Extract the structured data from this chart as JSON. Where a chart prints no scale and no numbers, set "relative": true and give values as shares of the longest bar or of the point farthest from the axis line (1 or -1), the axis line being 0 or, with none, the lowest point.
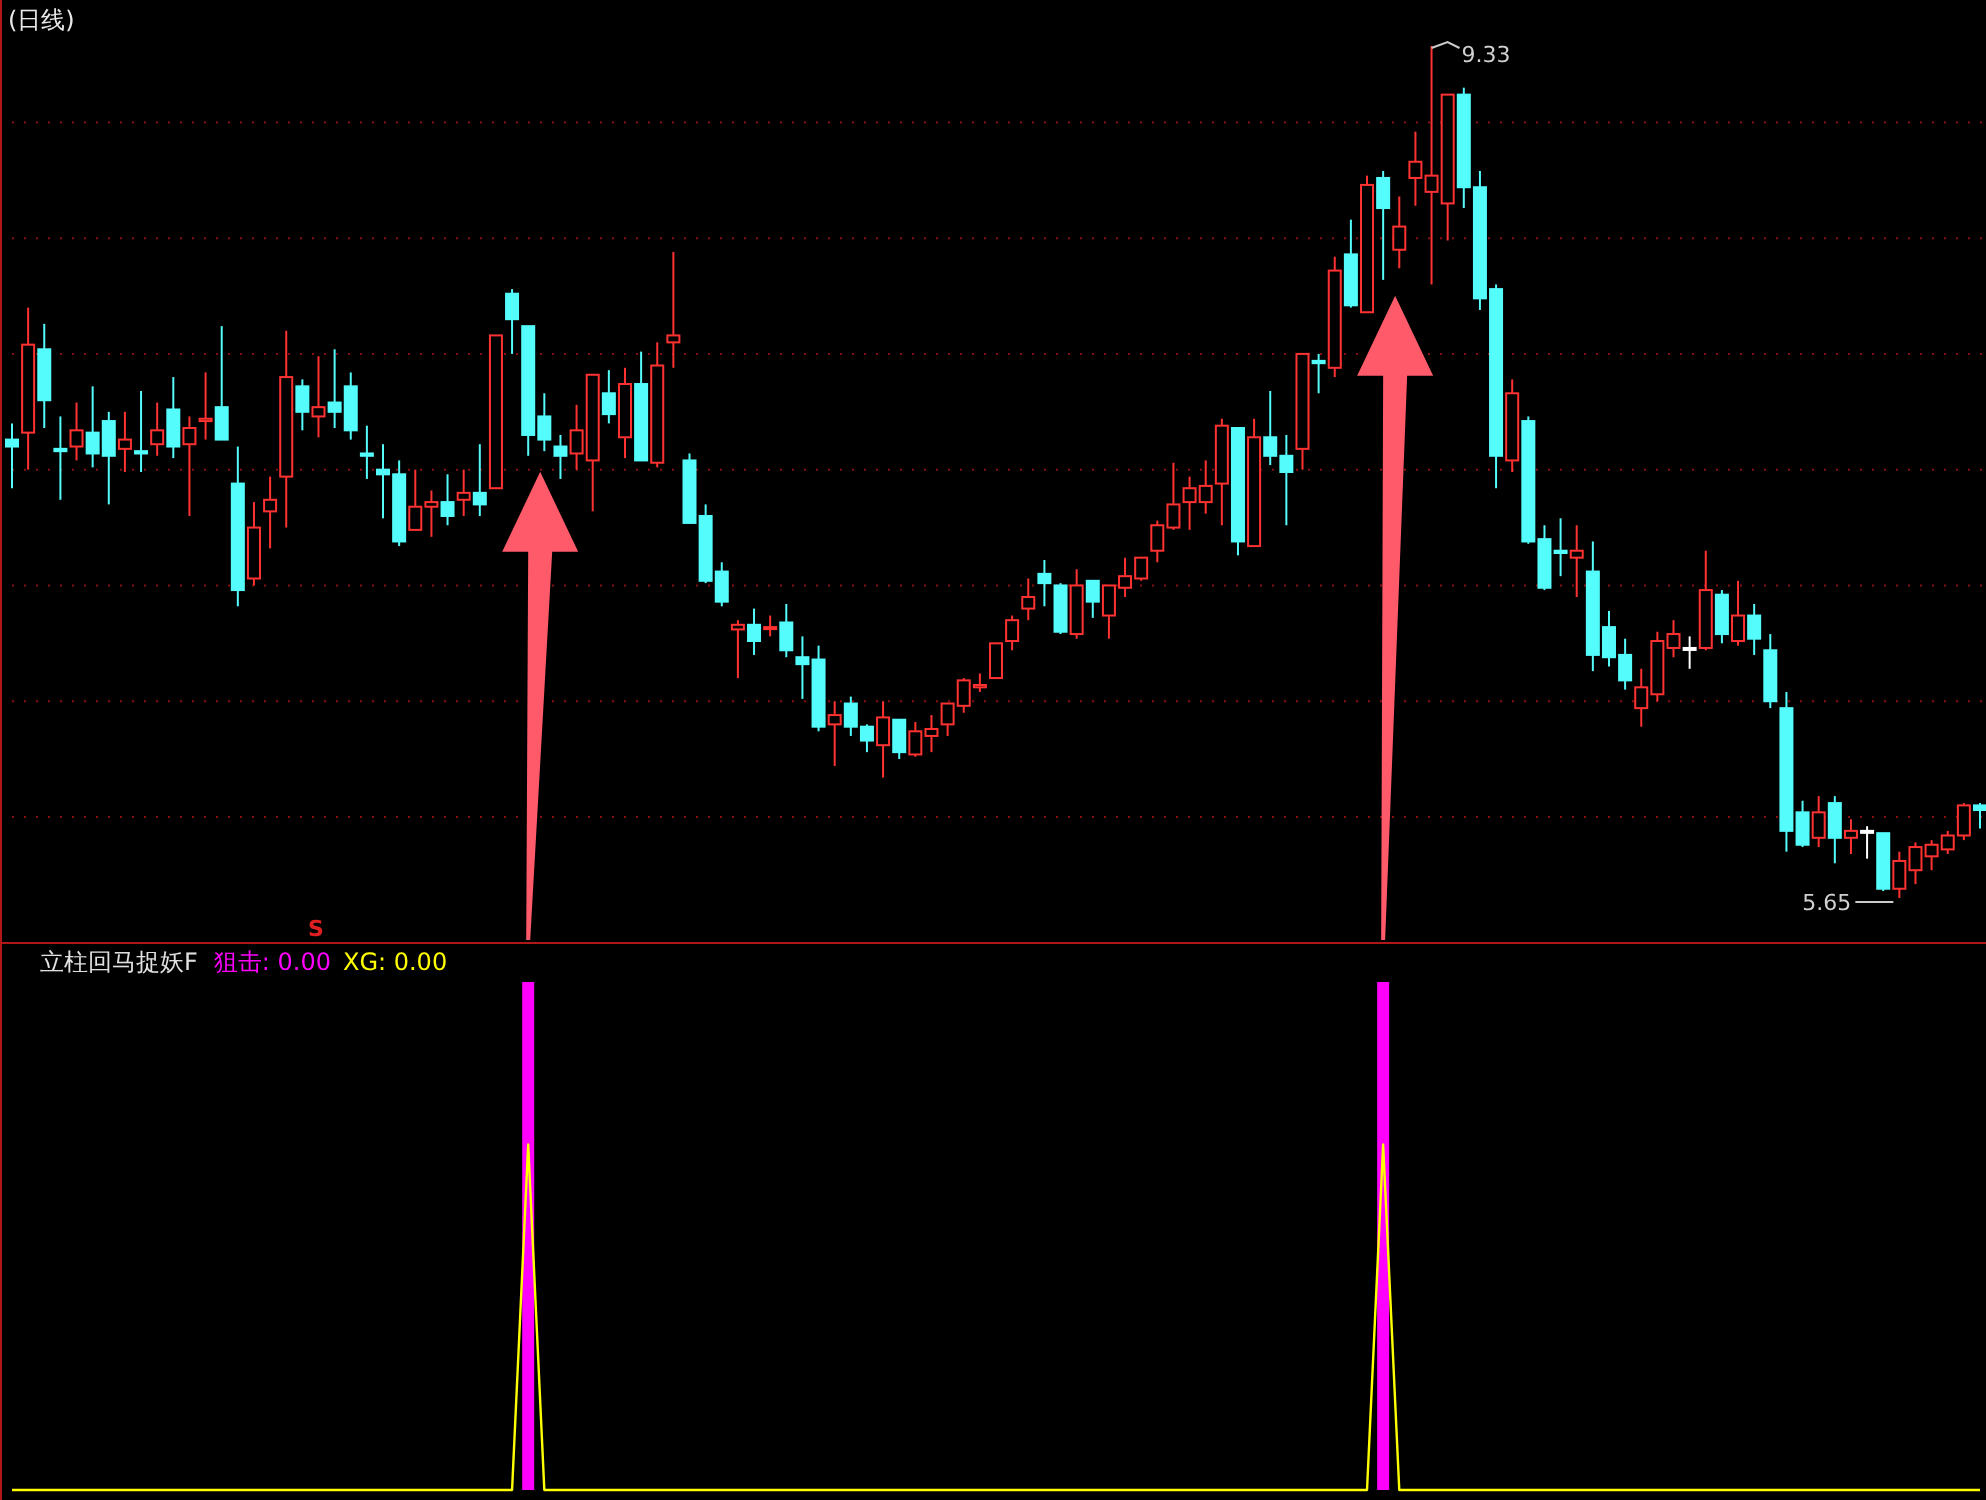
{
  "chart_data": [
    {
      "type": "candlestick",
      "title": "(日线)",
      "grid": "y",
      "yticks": [
        {
          "value": 6,
          "label": null
        },
        {
          "value": 6.5,
          "label": null
        },
        {
          "value": 7,
          "label": null
        },
        {
          "value": 7.5,
          "label": null
        },
        {
          "value": 8,
          "label": null
        },
        {
          "value": 8.5,
          "label": null
        },
        {
          "value": 9,
          "label": null
        }
      ],
      "annotations": [
        "9.33",
        "5.65",
        "S"
      ],
      "categories": [
        null,
        null,
        null,
        null,
        null,
        null,
        null,
        null,
        null,
        null,
        null,
        null,
        null,
        null,
        null,
        null,
        null,
        null,
        null,
        null,
        null,
        null,
        null,
        null,
        null,
        null,
        null,
        null,
        null,
        null,
        null,
        null,
        null,
        null,
        null,
        null,
        null,
        null,
        null,
        null,
        null,
        null,
        null,
        null,
        null,
        null,
        null,
        null,
        null,
        null,
        null,
        null,
        null,
        null,
        null,
        null,
        null,
        null,
        null,
        null,
        null,
        null,
        null,
        null,
        null,
        null,
        null,
        null,
        null,
        null,
        null,
        null,
        null,
        null,
        null,
        null,
        null,
        null,
        null,
        null,
        null,
        null,
        null,
        null,
        null,
        null,
        null,
        null,
        null,
        null,
        null,
        null,
        null,
        null,
        null,
        null,
        null,
        null,
        null,
        null,
        null,
        null,
        null,
        null,
        null,
        null,
        null,
        null,
        null,
        null,
        null,
        null,
        null,
        null,
        null,
        null,
        null,
        null,
        null,
        null,
        null,
        null,
        null
      ],
      "ohlc": [
        [
          7.63,
          7.7,
          7.42,
          7.6
        ],
        [
          7.66,
          8.2,
          7.5,
          8.04
        ],
        [
          8.02,
          8.13,
          7.68,
          7.8
        ],
        [
          7.59,
          7.73,
          7.37,
          7.58
        ],
        [
          7.6,
          7.79,
          7.54,
          7.67
        ],
        [
          7.66,
          7.86,
          7.51,
          7.57
        ],
        [
          7.71,
          7.75,
          7.35,
          7.56
        ],
        [
          7.59,
          7.75,
          7.49,
          7.63
        ],
        [
          7.58,
          7.84,
          7.49,
          7.57
        ],
        [
          7.61,
          7.79,
          7.56,
          7.67
        ],
        [
          7.76,
          7.9,
          7.55,
          7.6
        ],
        [
          7.61,
          7.73,
          7.3,
          7.68
        ],
        [
          7.71,
          7.92,
          7.63,
          7.72
        ],
        [
          7.77,
          8.12,
          7.63,
          7.63
        ],
        [
          7.44,
          7.6,
          6.91,
          6.98
        ],
        [
          7.03,
          7.36,
          7.0,
          7.25
        ],
        [
          7.32,
          7.47,
          7.16,
          7.37
        ],
        [
          7.47,
          8.1,
          7.25,
          7.9
        ],
        [
          7.86,
          7.89,
          7.67,
          7.75
        ],
        [
          7.73,
          7.99,
          7.64,
          7.77
        ],
        [
          7.79,
          8.02,
          7.68,
          7.75
        ],
        [
          7.86,
          7.92,
          7.63,
          7.67
        ],
        [
          7.57,
          7.69,
          7.46,
          7.56
        ],
        [
          7.5,
          7.61,
          7.29,
          7.48
        ],
        [
          7.48,
          7.54,
          7.17,
          7.19
        ],
        [
          7.24,
          7.5,
          7.24,
          7.34
        ],
        [
          7.34,
          7.41,
          7.21,
          7.36
        ],
        [
          7.36,
          7.48,
          7.26,
          7.3
        ],
        [
          7.37,
          7.5,
          7.3,
          7.4
        ],
        [
          7.4,
          7.61,
          7.3,
          7.35
        ],
        [
          7.42,
          8.08,
          7.42,
          8.08
        ],
        [
          8.26,
          8.28,
          8.0,
          8.15
        ],
        [
          8.12,
          8.12,
          7.56,
          7.65
        ],
        [
          7.73,
          7.83,
          7.58,
          7.63
        ],
        [
          7.6,
          7.65,
          7.46,
          7.56
        ],
        [
          7.57,
          7.78,
          7.5,
          7.67
        ],
        [
          7.54,
          7.91,
          7.32,
          7.91
        ],
        [
          7.83,
          7.93,
          7.7,
          7.74
        ],
        [
          7.64,
          7.94,
          7.55,
          7.87
        ],
        [
          7.87,
          8.01,
          7.54,
          7.54
        ],
        [
          7.53,
          8.05,
          7.51,
          7.95
        ],
        [
          8.05,
          8.44,
          7.94,
          8.08
        ],
        [
          7.54,
          7.57,
          7.27,
          7.27
        ],
        [
          7.3,
          7.35,
          7.01,
          7.02
        ],
        [
          7.06,
          7.1,
          6.91,
          6.93
        ],
        [
          6.81,
          6.85,
          6.6,
          6.83
        ],
        [
          6.83,
          6.9,
          6.7,
          6.76
        ],
        [
          6.82,
          6.87,
          6.78,
          6.82
        ],
        [
          6.84,
          6.92,
          6.69,
          6.72
        ],
        [
          6.69,
          6.78,
          6.51,
          6.66
        ],
        [
          6.68,
          6.74,
          6.37,
          6.39
        ],
        [
          6.4,
          6.5,
          6.22,
          6.44
        ],
        [
          6.49,
          6.52,
          6.35,
          6.39
        ],
        [
          6.39,
          6.4,
          6.28,
          6.33
        ],
        [
          6.31,
          6.5,
          6.17,
          6.43
        ],
        [
          6.42,
          6.42,
          6.25,
          6.28
        ],
        [
          6.27,
          6.41,
          6.26,
          6.37
        ],
        [
          6.35,
          6.44,
          6.28,
          6.38
        ],
        [
          6.4,
          6.49,
          6.35,
          6.49
        ],
        [
          6.48,
          6.6,
          6.45,
          6.59
        ],
        [
          6.56,
          6.62,
          6.54,
          6.57
        ],
        [
          6.6,
          6.75,
          6.6,
          6.75
        ],
        [
          6.76,
          6.87,
          6.72,
          6.85
        ],
        [
          6.9,
          7.03,
          6.85,
          6.95
        ],
        [
          7.05,
          7.11,
          6.91,
          7.01
        ],
        [
          7.0,
          7.01,
          6.79,
          6.8
        ],
        [
          6.79,
          7.07,
          6.77,
          7.0
        ],
        [
          7.02,
          7.02,
          6.86,
          6.93
        ],
        [
          6.87,
          7.0,
          6.77,
          7.0
        ],
        [
          6.99,
          7.12,
          6.95,
          7.04
        ],
        [
          7.03,
          7.12,
          7.02,
          7.12
        ],
        [
          7.15,
          7.28,
          7.1,
          7.26
        ],
        [
          7.25,
          7.53,
          7.24,
          7.35
        ],
        [
          7.36,
          7.47,
          7.24,
          7.42
        ],
        [
          7.36,
          7.54,
          7.31,
          7.43
        ],
        [
          7.44,
          7.72,
          7.26,
          7.69
        ],
        [
          7.68,
          7.68,
          7.13,
          7.19
        ],
        [
          7.17,
          7.72,
          7.17,
          7.64
        ],
        [
          7.64,
          7.84,
          7.52,
          7.56
        ],
        [
          7.56,
          7.65,
          7.26,
          7.49
        ],
        [
          7.59,
          8.0,
          7.5,
          8.0
        ],
        [
          7.97,
          8.0,
          7.83,
          7.96
        ],
        [
          7.94,
          8.42,
          7.9,
          8.36
        ],
        [
          8.43,
          8.58,
          8.2,
          8.21
        ],
        [
          8.18,
          8.77,
          8.18,
          8.73
        ],
        [
          8.76,
          8.79,
          8.32,
          8.63
        ],
        [
          8.45,
          8.68,
          8.37,
          8.55
        ],
        [
          8.76,
          8.96,
          8.64,
          8.83
        ],
        [
          8.7,
          9.33,
          8.3,
          8.77
        ],
        [
          8.65,
          9.12,
          8.49,
          9.12
        ],
        [
          9.12,
          9.15,
          8.63,
          8.72
        ],
        [
          8.72,
          8.79,
          8.19,
          8.24
        ],
        [
          8.28,
          8.3,
          7.42,
          7.56
        ],
        [
          7.54,
          7.89,
          7.49,
          7.83
        ],
        [
          7.71,
          7.73,
          7.18,
          7.19
        ],
        [
          7.2,
          7.26,
          6.98,
          6.99
        ],
        [
          7.15,
          7.29,
          7.04,
          7.14
        ],
        [
          7.12,
          7.26,
          6.95,
          7.15
        ],
        [
          7.06,
          7.19,
          6.63,
          6.7
        ],
        [
          6.82,
          6.89,
          6.65,
          6.69
        ],
        [
          6.7,
          6.77,
          6.55,
          6.59
        ],
        [
          6.47,
          6.64,
          6.39,
          6.56
        ],
        [
          6.53,
          6.8,
          6.5,
          6.76
        ],
        [
          6.73,
          6.85,
          6.69,
          6.79
        ],
        [
          6.73,
          6.78,
          6.64,
          6.73
        ],
        [
          6.73,
          7.15,
          6.72,
          6.98
        ],
        [
          6.96,
          6.98,
          6.75,
          6.79
        ],
        [
          6.76,
          7.02,
          6.74,
          6.87
        ],
        [
          6.87,
          6.92,
          6.7,
          6.77
        ],
        [
          6.72,
          6.79,
          6.47,
          6.5
        ],
        [
          6.47,
          6.54,
          5.85,
          5.94
        ],
        [
          6.02,
          6.07,
          5.87,
          5.88
        ],
        [
          5.91,
          6.09,
          5.87,
          6.02
        ],
        [
          6.06,
          6.09,
          5.8,
          5.91
        ],
        [
          5.91,
          5.99,
          5.84,
          5.94
        ],
        [
          5.94,
          5.96,
          5.82,
          5.94
        ],
        [
          5.93,
          5.93,
          5.68,
          5.69
        ],
        [
          5.69,
          5.85,
          5.65,
          5.81
        ],
        [
          5.77,
          5.89,
          5.71,
          5.87
        ],
        [
          5.83,
          5.9,
          5.77,
          5.88
        ],
        [
          5.86,
          5.94,
          5.84,
          5.92
        ],
        [
          5.92,
          6.06,
          5.9,
          6.05
        ],
        [
          6.05,
          6.06,
          5.95,
          6.03
        ]
      ],
      "colors": [
        "#54fcfc",
        "#ff3232",
        "#54fcfc",
        "#54fcfc",
        "#ff3232",
        "#54fcfc",
        "#54fcfc",
        "#ff3232",
        "#54fcfc",
        "#ff3232",
        "#54fcfc",
        "#ff3232",
        "#ff3232",
        "#54fcfc",
        "#54fcfc",
        "#ff3232",
        "#ff3232",
        "#ff3232",
        "#54fcfc",
        "#ff3232",
        "#54fcfc",
        "#54fcfc",
        "#54fcfc",
        "#54fcfc",
        "#54fcfc",
        "#ff3232",
        "#ff3232",
        "#54fcfc",
        "#ff3232",
        "#54fcfc",
        "#ff3232",
        "#54fcfc",
        "#54fcfc",
        "#54fcfc",
        "#54fcfc",
        "#ff3232",
        "#ff3232",
        "#54fcfc",
        "#ff3232",
        "#54fcfc",
        "#ff3232",
        "#ff3232",
        "#54fcfc",
        "#54fcfc",
        "#54fcfc",
        "#ff3232",
        "#54fcfc",
        "#ff3232",
        "#54fcfc",
        "#54fcfc",
        "#54fcfc",
        "#ff3232",
        "#54fcfc",
        "#54fcfc",
        "#ff3232",
        "#54fcfc",
        "#ff3232",
        "#ff3232",
        "#ff3232",
        "#ff3232",
        "#ff3232",
        "#ff3232",
        "#ff3232",
        "#ff3232",
        "#54fcfc",
        "#54fcfc",
        "#ff3232",
        "#54fcfc",
        "#ff3232",
        "#ff3232",
        "#ff3232",
        "#ff3232",
        "#ff3232",
        "#ff3232",
        "#ff3232",
        "#ff3232",
        "#54fcfc",
        "#ff3232",
        "#54fcfc",
        "#54fcfc",
        "#ff3232",
        "#54fcfc",
        "#ff3232",
        "#54fcfc",
        "#ff3232",
        "#54fcfc",
        "#ff3232",
        "#ff3232",
        "#ff3232",
        "#ff3232",
        "#54fcfc",
        "#54fcfc",
        "#54fcfc",
        "#ff3232",
        "#54fcfc",
        "#54fcfc",
        "#54fcfc",
        "#ff3232",
        "#54fcfc",
        "#54fcfc",
        "#54fcfc",
        "#ff3232",
        "#ff3232",
        "#ff3232",
        "#ffffff",
        "#ff3232",
        "#54fcfc",
        "#ff3232",
        "#54fcfc",
        "#54fcfc",
        "#54fcfc",
        "#54fcfc",
        "#ff3232",
        "#54fcfc",
        "#ff3232",
        "#ffffff",
        "#54fcfc",
        "#ff3232",
        "#ff3232",
        "#ff3232",
        "#ff3232",
        "#ff3232",
        "#54fcfc"
      ]
    },
    {
      "type": "bar",
      "title": "立柱回马捉妖F",
      "relative": true,
      "legend": "top left",
      "categories": [
        null,
        null,
        null,
        null,
        null,
        null,
        null,
        null,
        null,
        null,
        null,
        null,
        null,
        null,
        null,
        null,
        null,
        null,
        null,
        null,
        null,
        null,
        null,
        null,
        null,
        null,
        null,
        null,
        null,
        null,
        null,
        null,
        null,
        null,
        null,
        null,
        null,
        null,
        null,
        null,
        null,
        null,
        null,
        null,
        null,
        null,
        null,
        null,
        null,
        null,
        null,
        null,
        null,
        null,
        null,
        null,
        null,
        null,
        null,
        null,
        null,
        null,
        null,
        null,
        null,
        null,
        null,
        null,
        null,
        null,
        null,
        null,
        null,
        null,
        null,
        null,
        null,
        null,
        null,
        null,
        null,
        null,
        null,
        null,
        null,
        null,
        null,
        null,
        null,
        null,
        null,
        null,
        null,
        null,
        null,
        null,
        null,
        null,
        null,
        null,
        null,
        null,
        null,
        null,
        null,
        null,
        null,
        null,
        null,
        null,
        null,
        null,
        null,
        null,
        null,
        null,
        null,
        null,
        null,
        null,
        null,
        null,
        null
      ],
      "series": [
        {
          "name": "狙击: 0.00",
          "color": "#ff00ff",
          "values": [
            0,
            0,
            0,
            0,
            0,
            0,
            0,
            0,
            0,
            0,
            0,
            0,
            0,
            0,
            0,
            0,
            0,
            0,
            0,
            0,
            0,
            0,
            0,
            0,
            0,
            0,
            0,
            0,
            0,
            0,
            0,
            0,
            1,
            0,
            0,
            0,
            0,
            0,
            0,
            0,
            0,
            0,
            0,
            0,
            0,
            0,
            0,
            0,
            0,
            0,
            0,
            0,
            0,
            0,
            0,
            0,
            0,
            0,
            0,
            0,
            0,
            0,
            0,
            0,
            0,
            0,
            0,
            0,
            0,
            0,
            0,
            0,
            0,
            0,
            0,
            0,
            0,
            0,
            0,
            0,
            0,
            0,
            0,
            0,
            0,
            1,
            0,
            0,
            0,
            0,
            0,
            0,
            0,
            0,
            0,
            0,
            0,
            0,
            0,
            0,
            0,
            0,
            0,
            0,
            0,
            0,
            0,
            0,
            0,
            0,
            0,
            0,
            0,
            0,
            0,
            0,
            0,
            0,
            0,
            0,
            0,
            0,
            0
          ]
        },
        {
          "name": "XG: 0.00",
          "color": "#ffff00",
          "type": "line",
          "values": [
            0,
            0,
            0,
            0,
            0,
            0,
            0,
            0,
            0,
            0,
            0,
            0,
            0,
            0,
            0,
            0,
            0,
            0,
            0,
            0,
            0,
            0,
            0,
            0,
            0,
            0,
            0,
            0,
            0,
            0,
            0,
            0,
            0.68,
            0,
            0,
            0,
            0,
            0,
            0,
            0,
            0,
            0,
            0,
            0,
            0,
            0,
            0,
            0,
            0,
            0,
            0,
            0,
            0,
            0,
            0,
            0,
            0,
            0,
            0,
            0,
            0,
            0,
            0,
            0,
            0,
            0,
            0,
            0,
            0,
            0,
            0,
            0,
            0,
            0,
            0,
            0,
            0,
            0,
            0,
            0,
            0,
            0,
            0,
            0,
            0,
            0.68,
            0,
            0,
            0,
            0,
            0,
            0,
            0,
            0,
            0,
            0,
            0,
            0,
            0,
            0,
            0,
            0,
            0,
            0,
            0,
            0,
            0,
            0,
            0,
            0,
            0,
            0,
            0,
            0,
            0,
            0,
            0,
            0,
            0,
            0,
            0,
            0,
            0
          ]
        }
      ]
    }
  ]
}
